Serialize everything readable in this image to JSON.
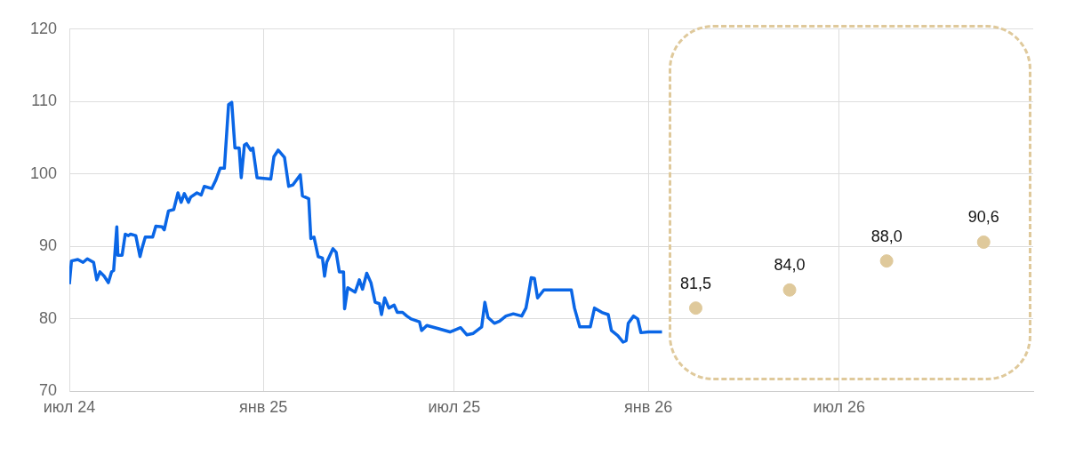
{
  "chart_data": {
    "type": "line",
    "xlim": [
      "2024-07-01",
      "2027-01-01"
    ],
    "xticks": [
      {
        "value": "2024-07-01",
        "label": "июл 24"
      },
      {
        "value": "2025-01-01",
        "label": "янв 25"
      },
      {
        "value": "2025-07-01",
        "label": "июл 25"
      },
      {
        "value": "2026-01-01",
        "label": "янв 26"
      },
      {
        "value": "2026-07-01",
        "label": "июл 26"
      }
    ],
    "ylim": [
      70,
      120
    ],
    "yticks": [
      70,
      80,
      90,
      100,
      110,
      120
    ],
    "grid": true,
    "legend": false,
    "marker": "none",
    "series": [
      {
        "type": "line",
        "color": "#0a66e6",
        "x": [
          "2024-07-01",
          "2024-07-03",
          "2024-07-09",
          "2024-07-14",
          "2024-07-18",
          "2024-07-24",
          "2024-07-27",
          "2024-07-30",
          "2024-08-03",
          "2024-08-07",
          "2024-08-10",
          "2024-08-12",
          "2024-08-15",
          "2024-08-16",
          "2024-08-20",
          "2024-08-23",
          "2024-08-26",
          "2024-08-28",
          "2024-09-02",
          "2024-09-06",
          "2024-09-08",
          "2024-09-11",
          "2024-09-18",
          "2024-09-21",
          "2024-09-27",
          "2024-09-29",
          "2024-10-03",
          "2024-10-08",
          "2024-10-12",
          "2024-10-15",
          "2024-10-18",
          "2024-10-22",
          "2024-10-24",
          "2024-10-30",
          "2024-11-03",
          "2024-11-06",
          "2024-11-13",
          "2024-11-17",
          "2024-11-21",
          "2024-11-25",
          "2024-11-29",
          "2024-12-02",
          "2024-12-05",
          "2024-12-09",
          "2024-12-11",
          "2024-12-14",
          "2024-12-16",
          "2024-12-20",
          "2024-12-22",
          "2024-12-26",
          "2025-01-08",
          "2025-01-11",
          "2025-01-15",
          "2025-01-21",
          "2025-01-25",
          "2025-01-29",
          "2025-02-05",
          "2025-02-07",
          "2025-02-13",
          "2025-02-15",
          "2025-02-18",
          "2025-02-22",
          "2025-02-26",
          "2025-02-28",
          "2025-03-02",
          "2025-03-08",
          "2025-03-11",
          "2025-03-14",
          "2025-03-18",
          "2025-03-19",
          "2025-03-22",
          "2025-03-29",
          "2025-04-02",
          "2025-04-05",
          "2025-04-09",
          "2025-04-13",
          "2025-04-17",
          "2025-04-21",
          "2025-04-23",
          "2025-04-26",
          "2025-04-30",
          "2025-05-05",
          "2025-05-08",
          "2025-05-13",
          "2025-05-17",
          "2025-05-21",
          "2025-05-29",
          "2025-05-31",
          "2025-06-05",
          "2025-06-15",
          "2025-06-27",
          "2025-07-07",
          "2025-07-13",
          "2025-07-19",
          "2025-07-27",
          "2025-07-30",
          "2025-08-02",
          "2025-08-08",
          "2025-08-13",
          "2025-08-19",
          "2025-08-26",
          "2025-09-03",
          "2025-09-07",
          "2025-09-09",
          "2025-09-12",
          "2025-09-15",
          "2025-09-18",
          "2025-09-24",
          "2025-10-20",
          "2025-10-23",
          "2025-10-28",
          "2025-11-07",
          "2025-11-11",
          "2025-11-18",
          "2025-11-24",
          "2025-11-27",
          "2025-12-03",
          "2025-12-08",
          "2025-12-11",
          "2025-12-13",
          "2025-12-18",
          "2025-12-22",
          "2025-12-25",
          "2026-01-01",
          "2026-01-14"
        ],
        "values": [
          84.8,
          88.0,
          88.2,
          87.8,
          88.3,
          87.8,
          85.4,
          86.5,
          85.9,
          85.0,
          86.5,
          86.7,
          92.7,
          88.8,
          88.8,
          91.7,
          91.5,
          91.7,
          91.5,
          88.6,
          89.8,
          91.3,
          91.3,
          92.8,
          92.7,
          92.3,
          94.9,
          95.1,
          97.4,
          96.1,
          97.3,
          96.1,
          96.8,
          97.4,
          97.1,
          98.3,
          98.0,
          99.2,
          100.8,
          100.8,
          109.6,
          109.9,
          103.6,
          103.6,
          99.5,
          104.0,
          104.2,
          103.3,
          103.6,
          99.5,
          99.3,
          102.4,
          103.3,
          102.3,
          98.3,
          98.5,
          99.9,
          97.0,
          96.6,
          91.1,
          91.3,
          88.6,
          88.4,
          85.9,
          87.8,
          89.7,
          89.2,
          86.5,
          86.5,
          81.4,
          84.3,
          83.7,
          85.4,
          84.1,
          86.3,
          85.0,
          82.3,
          82.1,
          80.6,
          82.9,
          81.5,
          81.9,
          80.9,
          80.9,
          80.4,
          80.0,
          79.6,
          78.4,
          79.1,
          78.7,
          78.2,
          78.8,
          77.8,
          78.0,
          78.9,
          82.3,
          80.2,
          79.4,
          79.7,
          80.4,
          80.7,
          80.4,
          81.5,
          83.1,
          85.7,
          85.6,
          82.9,
          84.0,
          84.0,
          81.5,
          78.9,
          78.9,
          81.5,
          80.9,
          80.6,
          78.4,
          77.7,
          76.8,
          77.0,
          79.4,
          80.4,
          80.0,
          78.1,
          78.2,
          78.2
        ]
      },
      {
        "type": "scatter",
        "color": "#dfc99b",
        "marker": "circle",
        "x": [
          "2026-02-15",
          "2026-05-15",
          "2026-08-15",
          "2026-11-15"
        ],
        "values": [
          81.5,
          84.0,
          88.0,
          90.6
        ],
        "value_labels": [
          "81,5",
          "84,0",
          "88,0",
          "90,6"
        ]
      }
    ]
  }
}
